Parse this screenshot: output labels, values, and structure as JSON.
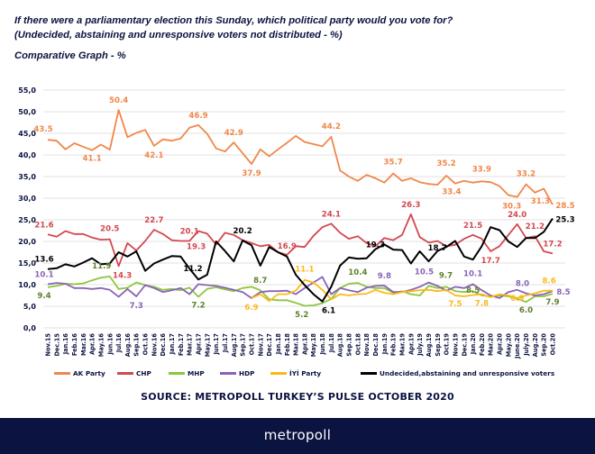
{
  "header": {
    "title_line1": "If there were a parliamentary election this Sunday, which political party would you vote for?",
    "title_line2": "(Undecided, abstaining and unresponsive voters not distributed - %)",
    "subtitle": "Comparative Graph - %"
  },
  "source": "SOURCE: METROPOLL TURKEY’S PULSE OCTOBER 2020",
  "footer": {
    "brand": "metropoll",
    "background": "#0b1340"
  },
  "chart_data": {
    "type": "line",
    "title": "Comparative Graph - %",
    "ylim": [
      0,
      55
    ],
    "yticks": [
      "0,0",
      "5,0",
      "10,0",
      "15,0",
      "20,0",
      "25,0",
      "30,0",
      "35,0",
      "40,0",
      "45,0",
      "50,0",
      "55,0"
    ],
    "grid": true,
    "legend": "bottom",
    "categories": [
      "Nov.15",
      "Dec.15",
      "Jan.16",
      "Feb.16",
      "Mar.16",
      "Apr.16",
      "May.16",
      "Jun.16",
      "Jul.16",
      "Aug.16",
      "Sep.16",
      "Oct.16",
      "Nov.16",
      "Dec.16",
      "Jan.17",
      "Feb.17",
      "Mar.17",
      "Apr.17",
      "May.17",
      "Jun.17",
      "Jul.17",
      "Aug.17",
      "Sep.17",
      "Oct.17",
      "Nov.17",
      "Dec.17",
      "Jan.18",
      "Feb.18",
      "Mar.18",
      "Apr.18",
      "May.18",
      "Jun.18",
      "Jul.18",
      "Aug.18",
      "Sep.18",
      "Oct.18",
      "Nov.18",
      "Dec.18",
      "Jan.19",
      "Feb.19",
      "Mar.19",
      "Apr.19",
      "July.19",
      "Aug.19",
      "Sep.19",
      "Oct.19",
      "Nov.19",
      "Dec.19",
      "Jan.20",
      "Feb.20",
      "Mar.20",
      "Apr.20",
      "May.20",
      "June.20",
      "July.20",
      "Aug.20",
      "Sep.20",
      "Oct.20"
    ],
    "series": [
      {
        "name": "AK Party",
        "color": "#f0874a",
        "label_color": "#f0874a",
        "values": [
          43.5,
          43.3,
          41.3,
          42.7,
          41.9,
          41.1,
          42.4,
          41.2,
          50.4,
          44.1,
          45.1,
          45.8,
          42.1,
          43.6,
          43.3,
          43.8,
          46.3,
          46.9,
          44.9,
          41.5,
          40.8,
          42.9,
          40.4,
          37.9,
          41.3,
          39.7,
          41.3,
          42.8,
          44.4,
          43.0,
          42.5,
          42.0,
          44.2,
          36.4,
          35.0,
          34.0,
          35.4,
          34.6,
          33.6,
          35.7,
          34.0,
          34.6,
          33.7,
          33.3,
          33.1,
          35.2,
          33.4,
          34.0,
          33.6,
          33.9,
          33.7,
          32.8,
          30.7,
          30.3,
          33.2,
          31.3,
          32.2,
          28.5
        ]
      },
      {
        "name": "CHP",
        "color": "#d2484f",
        "label_color": "#d2484f",
        "values": [
          21.6,
          21.1,
          22.4,
          21.7,
          21.7,
          20.9,
          20.4,
          20.5,
          14.3,
          19.6,
          17.9,
          20.1,
          22.7,
          21.7,
          20.3,
          20.1,
          20.1,
          22.4,
          21.8,
          19.3,
          22.0,
          21.5,
          20.3,
          19.6,
          18.9,
          19.2,
          17.5,
          16.9,
          18.9,
          18.7,
          21.3,
          23.3,
          24.1,
          22.0,
          20.6,
          21.2,
          19.6,
          18.9,
          20.8,
          20.3,
          21.5,
          26.3,
          21.0,
          19.7,
          20.1,
          18.9,
          19.2,
          20.6,
          21.5,
          20.6,
          17.7,
          18.9,
          21.5,
          24.0,
          20.8,
          21.2,
          17.7,
          17.2
        ]
      },
      {
        "name": "MHP",
        "color": "#8dc63f",
        "label_color": "#5e7f2b",
        "values": [
          9.4,
          9.7,
          10.2,
          10.1,
          10.3,
          11.0,
          11.6,
          11.9,
          9.0,
          9.3,
          10.5,
          9.9,
          9.5,
          8.8,
          9.0,
          8.7,
          9.3,
          7.2,
          9.0,
          9.4,
          8.9,
          8.5,
          9.2,
          9.5,
          8.7,
          6.6,
          6.4,
          6.4,
          5.8,
          5.1,
          5.2,
          5.7,
          6.7,
          9.2,
          10.2,
          10.4,
          9.5,
          9.2,
          9.2,
          8.1,
          8.5,
          7.8,
          7.5,
          9.7,
          9.2,
          9.5,
          8.5,
          8.3,
          8.5,
          7.5,
          7.3,
          7.5,
          7.3,
          6.7,
          6.0,
          7.3,
          7.3,
          7.9
        ]
      },
      {
        "name": "HDP",
        "color": "#8a63b5",
        "label_color": "#8a63b5",
        "values": [
          10.1,
          10.4,
          10.2,
          9.2,
          9.2,
          9.0,
          9.2,
          8.8,
          7.2,
          9.0,
          7.3,
          9.9,
          9.2,
          8.3,
          8.7,
          9.2,
          7.8,
          10.1,
          9.9,
          9.7,
          9.3,
          8.8,
          8.3,
          6.9,
          8.3,
          8.5,
          8.5,
          8.6,
          7.8,
          9.2,
          10.5,
          11.8,
          7.8,
          9.2,
          8.7,
          8.3,
          9.3,
          9.7,
          9.8,
          8.3,
          8.3,
          8.8,
          9.5,
          10.5,
          9.7,
          8.6,
          9.5,
          9.2,
          10.1,
          8.7,
          7.5,
          6.9,
          8.3,
          8.8,
          8.0,
          7.5,
          7.8,
          8.5
        ]
      },
      {
        "name": "İYİ Party",
        "color": "#fbb917",
        "label_color": "#fbb917",
        "values": [
          null,
          null,
          null,
          null,
          null,
          null,
          null,
          null,
          null,
          null,
          null,
          null,
          null,
          null,
          null,
          null,
          null,
          null,
          null,
          null,
          null,
          null,
          null,
          6.9,
          7.8,
          6.2,
          7.8,
          7.8,
          8.6,
          11.1,
          10.5,
          8.8,
          6.6,
          7.8,
          7.5,
          7.8,
          7.9,
          8.8,
          8.1,
          7.8,
          8.3,
          8.5,
          8.7,
          8.8,
          8.5,
          8.8,
          7.5,
          7.3,
          7.6,
          7.8,
          7.1,
          7.8,
          7.5,
          6.9,
          7.5,
          8.0,
          8.6,
          8.6
        ]
      },
      {
        "name": "Undecided,abstaining and unresponsive voters",
        "color": "#000000",
        "label_color": "#000000",
        "values": [
          13.6,
          13.8,
          14.7,
          14.2,
          15.1,
          16.1,
          14.7,
          14.9,
          17.5,
          16.5,
          17.7,
          13.2,
          14.9,
          15.8,
          16.6,
          16.5,
          13.7,
          11.2,
          12.3,
          20.0,
          17.8,
          15.4,
          20.2,
          19.1,
          14.4,
          18.7,
          17.5,
          16.5,
          12.3,
          9.9,
          7.8,
          6.1,
          9.5,
          14.4,
          16.3,
          16.0,
          16.1,
          18.2,
          19.3,
          18.1,
          18.0,
          14.9,
          17.7,
          15.4,
          17.8,
          18.7,
          20.1,
          16.5,
          15.8,
          18.9,
          23.3,
          22.6,
          20.0,
          18.7,
          20.8,
          20.8,
          22.2,
          25.3
        ]
      }
    ],
    "data_labels": [
      {
        "series": 0,
        "index": 0,
        "text": "43.5"
      },
      {
        "series": 0,
        "index": 5,
        "text": "41.1"
      },
      {
        "series": 0,
        "index": 8,
        "text": "50.4"
      },
      {
        "series": 0,
        "index": 12,
        "text": "42.1"
      },
      {
        "series": 0,
        "index": 17,
        "text": "46.9"
      },
      {
        "series": 0,
        "index": 21,
        "text": "42.9"
      },
      {
        "series": 0,
        "index": 23,
        "text": "37.9"
      },
      {
        "series": 0,
        "index": 32,
        "text": "44.2"
      },
      {
        "series": 0,
        "index": 39,
        "text": "35.7"
      },
      {
        "series": 0,
        "index": 45,
        "text": "35.2"
      },
      {
        "series": 0,
        "index": 46,
        "text": "33.4"
      },
      {
        "series": 0,
        "index": 49,
        "text": "33.9"
      },
      {
        "series": 0,
        "index": 53,
        "text": "30.3"
      },
      {
        "series": 0,
        "index": 54,
        "text": "33.2"
      },
      {
        "series": 0,
        "index": 55,
        "text": "31.3"
      },
      {
        "series": 0,
        "index": 57,
        "text": "28.5"
      },
      {
        "series": 1,
        "index": 0,
        "text": "21.6"
      },
      {
        "series": 1,
        "index": 7,
        "text": "20.5"
      },
      {
        "series": 1,
        "index": 8,
        "text": "14.3"
      },
      {
        "series": 1,
        "index": 12,
        "text": "22.7"
      },
      {
        "series": 1,
        "index": 16,
        "text": "20.1"
      },
      {
        "series": 1,
        "index": 19,
        "text": "19.3"
      },
      {
        "series": 1,
        "index": 27,
        "text": "16.9"
      },
      {
        "series": 1,
        "index": 32,
        "text": "24.1"
      },
      {
        "series": 1,
        "index": 41,
        "text": "26.3"
      },
      {
        "series": 1,
        "index": 48,
        "text": "21.5"
      },
      {
        "series": 1,
        "index": 50,
        "text": "17.7"
      },
      {
        "series": 1,
        "index": 53,
        "text": "24.0"
      },
      {
        "series": 1,
        "index": 55,
        "text": "21.2"
      },
      {
        "series": 1,
        "index": 57,
        "text": "17.2"
      },
      {
        "series": 5,
        "index": 0,
        "text": "13.6"
      },
      {
        "series": 5,
        "index": 17,
        "text": "11.2"
      },
      {
        "series": 5,
        "index": 22,
        "text": "20.2"
      },
      {
        "series": 5,
        "index": 31,
        "text": "6.1"
      },
      {
        "series": 5,
        "index": 38,
        "text": "19.3"
      },
      {
        "series": 5,
        "index": 45,
        "text": "18.7"
      },
      {
        "series": 5,
        "index": 57,
        "text": "25.3"
      },
      {
        "series": 2,
        "index": 0,
        "text": "9.4"
      },
      {
        "series": 2,
        "index": 7,
        "text": "11.9"
      },
      {
        "series": 2,
        "index": 17,
        "text": "7.2"
      },
      {
        "series": 2,
        "index": 24,
        "text": "8.7"
      },
      {
        "series": 2,
        "index": 30,
        "text": "5.2"
      },
      {
        "series": 2,
        "index": 35,
        "text": "10.4"
      },
      {
        "series": 2,
        "index": 43,
        "text": "9.7"
      },
      {
        "series": 2,
        "index": 48,
        "text": "8.5"
      },
      {
        "series": 2,
        "index": 54,
        "text": "6.0"
      },
      {
        "series": 2,
        "index": 57,
        "text": "7.9"
      },
      {
        "series": 3,
        "index": 0,
        "text": "10.1"
      },
      {
        "series": 3,
        "index": 10,
        "text": "7.3"
      },
      {
        "series": 3,
        "index": 38,
        "text": "9.8"
      },
      {
        "series": 3,
        "index": 43,
        "text": "10.5"
      },
      {
        "series": 3,
        "index": 48,
        "text": "10.1"
      },
      {
        "series": 3,
        "index": 54,
        "text": "8.0"
      },
      {
        "series": 3,
        "index": 57,
        "text": "8.5"
      },
      {
        "series": 4,
        "index": 23,
        "text": "6.9"
      },
      {
        "series": 4,
        "index": 29,
        "text": "11.1"
      },
      {
        "series": 4,
        "index": 46,
        "text": "7.5"
      },
      {
        "series": 4,
        "index": 49,
        "text": "7.8"
      },
      {
        "series": 4,
        "index": 53,
        "text": "6.9"
      },
      {
        "series": 4,
        "index": 56,
        "text": "8.6"
      }
    ]
  },
  "legend": [
    {
      "label": "AK Party",
      "color": "#f0874a"
    },
    {
      "label": "CHP",
      "color": "#d2484f"
    },
    {
      "label": "MHP",
      "color": "#8dc63f"
    },
    {
      "label": "HDP",
      "color": "#8a63b5"
    },
    {
      "label": "İYİ Party",
      "color": "#fbb917"
    },
    {
      "label": "Undecided,abstaining and unresponsive voters",
      "color": "#000000"
    }
  ]
}
